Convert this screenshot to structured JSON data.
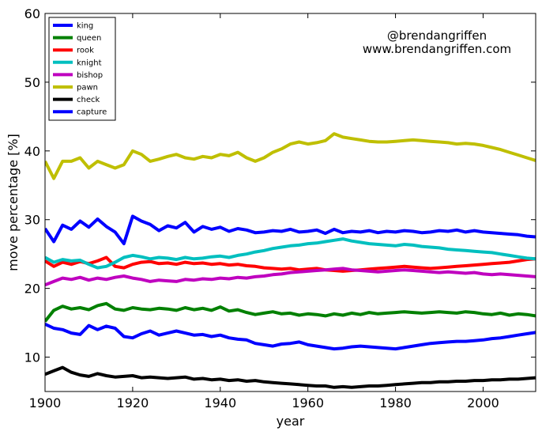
{
  "chart_data": {
    "type": "line",
    "xlabel": "year",
    "ylabel": "move percentage [%]",
    "xlim": [
      1900,
      2012
    ],
    "ylim": [
      5,
      60
    ],
    "xticks": [
      1900,
      1920,
      1940,
      1960,
      1980,
      2000
    ],
    "yticks": [
      10,
      20,
      30,
      40,
      50,
      60
    ],
    "grid": false,
    "legend_position": "top-left",
    "annotations": [
      "@brendangriffen",
      "www.brendangriffen.com"
    ],
    "x": [
      1900,
      1902,
      1904,
      1906,
      1908,
      1910,
      1912,
      1914,
      1916,
      1918,
      1920,
      1922,
      1924,
      1926,
      1928,
      1930,
      1932,
      1934,
      1936,
      1938,
      1940,
      1942,
      1944,
      1946,
      1948,
      1950,
      1952,
      1954,
      1956,
      1958,
      1960,
      1962,
      1964,
      1966,
      1968,
      1970,
      1972,
      1974,
      1976,
      1978,
      1980,
      1982,
      1984,
      1986,
      1988,
      1990,
      1992,
      1994,
      1996,
      1998,
      2000,
      2002,
      2004,
      2006,
      2008,
      2010,
      2012
    ],
    "series": [
      {
        "name": "king",
        "color": "#0000ff",
        "values": [
          28.7,
          26.8,
          29.2,
          28.6,
          29.8,
          28.9,
          30.1,
          29.0,
          28.2,
          26.5,
          30.5,
          29.8,
          29.3,
          28.4,
          29.1,
          28.8,
          29.6,
          28.2,
          29.0,
          28.6,
          28.9,
          28.3,
          28.7,
          28.5,
          28.1,
          28.2,
          28.4,
          28.3,
          28.6,
          28.2,
          28.3,
          28.5,
          28.0,
          28.6,
          28.1,
          28.3,
          28.2,
          28.4,
          28.1,
          28.3,
          28.2,
          28.4,
          28.3,
          28.1,
          28.2,
          28.4,
          28.3,
          28.5,
          28.2,
          28.4,
          28.2,
          28.1,
          28.0,
          27.9,
          27.8,
          27.6,
          27.5
        ]
      },
      {
        "name": "queen",
        "color": "#008000",
        "values": [
          15.2,
          16.8,
          17.4,
          17.0,
          17.2,
          16.9,
          17.5,
          17.8,
          17.0,
          16.8,
          17.2,
          17.0,
          16.9,
          17.1,
          17.0,
          16.8,
          17.2,
          16.9,
          17.1,
          16.8,
          17.3,
          16.7,
          16.9,
          16.5,
          16.2,
          16.4,
          16.6,
          16.3,
          16.4,
          16.1,
          16.3,
          16.2,
          16.0,
          16.3,
          16.1,
          16.4,
          16.2,
          16.5,
          16.3,
          16.4,
          16.5,
          16.6,
          16.5,
          16.4,
          16.5,
          16.6,
          16.5,
          16.4,
          16.6,
          16.5,
          16.3,
          16.2,
          16.4,
          16.1,
          16.3,
          16.2,
          16.0
        ]
      },
      {
        "name": "rook",
        "color": "#ff0000",
        "values": [
          24.0,
          23.2,
          23.8,
          23.5,
          23.9,
          23.6,
          24.0,
          24.5,
          23.2,
          23.0,
          23.5,
          23.8,
          23.9,
          23.6,
          23.7,
          23.5,
          23.8,
          23.6,
          23.7,
          23.5,
          23.6,
          23.4,
          23.5,
          23.3,
          23.2,
          23.0,
          22.9,
          22.8,
          22.9,
          22.7,
          22.8,
          22.9,
          22.7,
          22.6,
          22.5,
          22.6,
          22.7,
          22.8,
          22.9,
          23.0,
          23.1,
          23.2,
          23.1,
          23.0,
          22.9,
          23.0,
          23.1,
          23.2,
          23.3,
          23.4,
          23.5,
          23.6,
          23.7,
          23.8,
          24.0,
          24.2,
          24.3
        ]
      },
      {
        "name": "knight",
        "color": "#00bfbf",
        "values": [
          24.5,
          23.8,
          24.2,
          24.0,
          24.1,
          23.5,
          23.0,
          23.2,
          23.8,
          24.5,
          24.8,
          24.6,
          24.3,
          24.5,
          24.4,
          24.2,
          24.5,
          24.3,
          24.4,
          24.6,
          24.7,
          24.5,
          24.8,
          25.0,
          25.3,
          25.5,
          25.8,
          26.0,
          26.2,
          26.3,
          26.5,
          26.6,
          26.8,
          27.0,
          27.2,
          26.9,
          26.7,
          26.5,
          26.4,
          26.3,
          26.2,
          26.4,
          26.3,
          26.1,
          26.0,
          25.9,
          25.7,
          25.6,
          25.5,
          25.4,
          25.3,
          25.2,
          25.0,
          24.8,
          24.6,
          24.4,
          24.3
        ]
      },
      {
        "name": "bishop",
        "color": "#bf00bf",
        "values": [
          20.5,
          21.0,
          21.5,
          21.3,
          21.6,
          21.2,
          21.5,
          21.3,
          21.6,
          21.8,
          21.5,
          21.3,
          21.0,
          21.2,
          21.1,
          21.0,
          21.3,
          21.2,
          21.4,
          21.3,
          21.5,
          21.4,
          21.6,
          21.5,
          21.7,
          21.8,
          22.0,
          22.1,
          22.3,
          22.4,
          22.5,
          22.6,
          22.7,
          22.8,
          22.9,
          22.7,
          22.6,
          22.5,
          22.4,
          22.5,
          22.6,
          22.7,
          22.6,
          22.5,
          22.4,
          22.3,
          22.4,
          22.3,
          22.2,
          22.3,
          22.1,
          22.0,
          22.1,
          22.0,
          21.9,
          21.8,
          21.7
        ]
      },
      {
        "name": "pawn",
        "color": "#bfbf00",
        "values": [
          38.5,
          36.0,
          38.5,
          38.5,
          39.0,
          37.5,
          38.5,
          38.0,
          37.5,
          38.0,
          40.0,
          39.5,
          38.5,
          38.8,
          39.2,
          39.5,
          39.0,
          38.8,
          39.2,
          39.0,
          39.5,
          39.3,
          39.8,
          39.0,
          38.5,
          39.0,
          39.8,
          40.3,
          41.0,
          41.3,
          41.0,
          41.2,
          41.5,
          42.5,
          42.0,
          41.8,
          41.6,
          41.4,
          41.3,
          41.3,
          41.4,
          41.5,
          41.6,
          41.5,
          41.4,
          41.3,
          41.2,
          41.0,
          41.1,
          41.0,
          40.8,
          40.5,
          40.2,
          39.8,
          39.4,
          39.0,
          38.6
        ]
      },
      {
        "name": "check",
        "color": "#000000",
        "values": [
          7.5,
          8.0,
          8.5,
          7.8,
          7.4,
          7.2,
          7.6,
          7.3,
          7.1,
          7.2,
          7.3,
          7.0,
          7.1,
          7.0,
          6.9,
          7.0,
          7.1,
          6.8,
          6.9,
          6.7,
          6.8,
          6.6,
          6.7,
          6.5,
          6.6,
          6.4,
          6.3,
          6.2,
          6.1,
          6.0,
          5.9,
          5.8,
          5.8,
          5.6,
          5.7,
          5.6,
          5.7,
          5.8,
          5.8,
          5.9,
          6.0,
          6.1,
          6.2,
          6.3,
          6.3,
          6.4,
          6.4,
          6.5,
          6.5,
          6.6,
          6.6,
          6.7,
          6.7,
          6.8,
          6.8,
          6.9,
          7.0
        ]
      },
      {
        "name": "capture",
        "color": "#0000ff",
        "values": [
          14.8,
          14.2,
          14.0,
          13.5,
          13.3,
          14.6,
          14.0,
          14.5,
          14.2,
          13.0,
          12.8,
          13.4,
          13.8,
          13.2,
          13.5,
          13.8,
          13.5,
          13.2,
          13.3,
          13.0,
          13.2,
          12.8,
          12.6,
          12.5,
          12.0,
          11.8,
          11.6,
          11.9,
          12.0,
          12.2,
          11.8,
          11.6,
          11.4,
          11.2,
          11.3,
          11.5,
          11.6,
          11.5,
          11.4,
          11.3,
          11.2,
          11.4,
          11.6,
          11.8,
          12.0,
          12.1,
          12.2,
          12.3,
          12.3,
          12.4,
          12.5,
          12.7,
          12.8,
          13.0,
          13.2,
          13.4,
          13.6
        ]
      }
    ]
  }
}
